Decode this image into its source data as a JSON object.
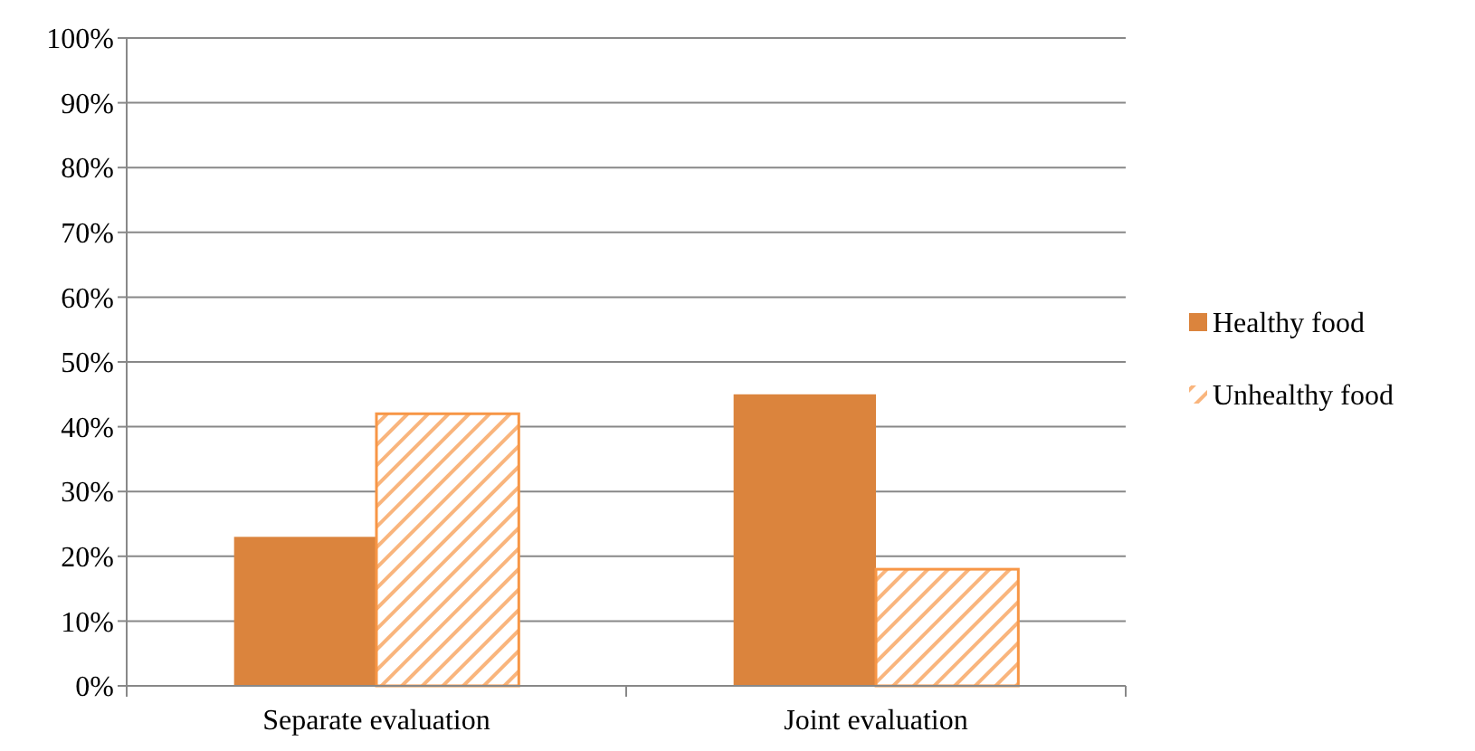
{
  "chart_data": {
    "type": "bar",
    "categories": [
      "Separate evaluation",
      "Joint evaluation"
    ],
    "series": [
      {
        "name": "Healthy food",
        "color": "#db843d",
        "values": [
          23,
          45
        ]
      },
      {
        "name": "Unhealthy food",
        "color": "#f79646",
        "values": [
          42,
          18
        ]
      }
    ],
    "ylim": [
      0,
      100
    ],
    "yticks": [
      {
        "value": 0,
        "label": "0%"
      },
      {
        "value": 10,
        "label": "10%"
      },
      {
        "value": 20,
        "label": "20%"
      },
      {
        "value": 30,
        "label": "30%"
      },
      {
        "value": 40,
        "label": "40%"
      },
      {
        "value": 50,
        "label": "50%"
      },
      {
        "value": 60,
        "label": "60%"
      },
      {
        "value": 70,
        "label": "70%"
      },
      {
        "value": 80,
        "label": "80%"
      },
      {
        "value": 90,
        "label": "90%"
      },
      {
        "value": 100,
        "label": "100%"
      }
    ],
    "grid": "y",
    "legend": "right"
  }
}
